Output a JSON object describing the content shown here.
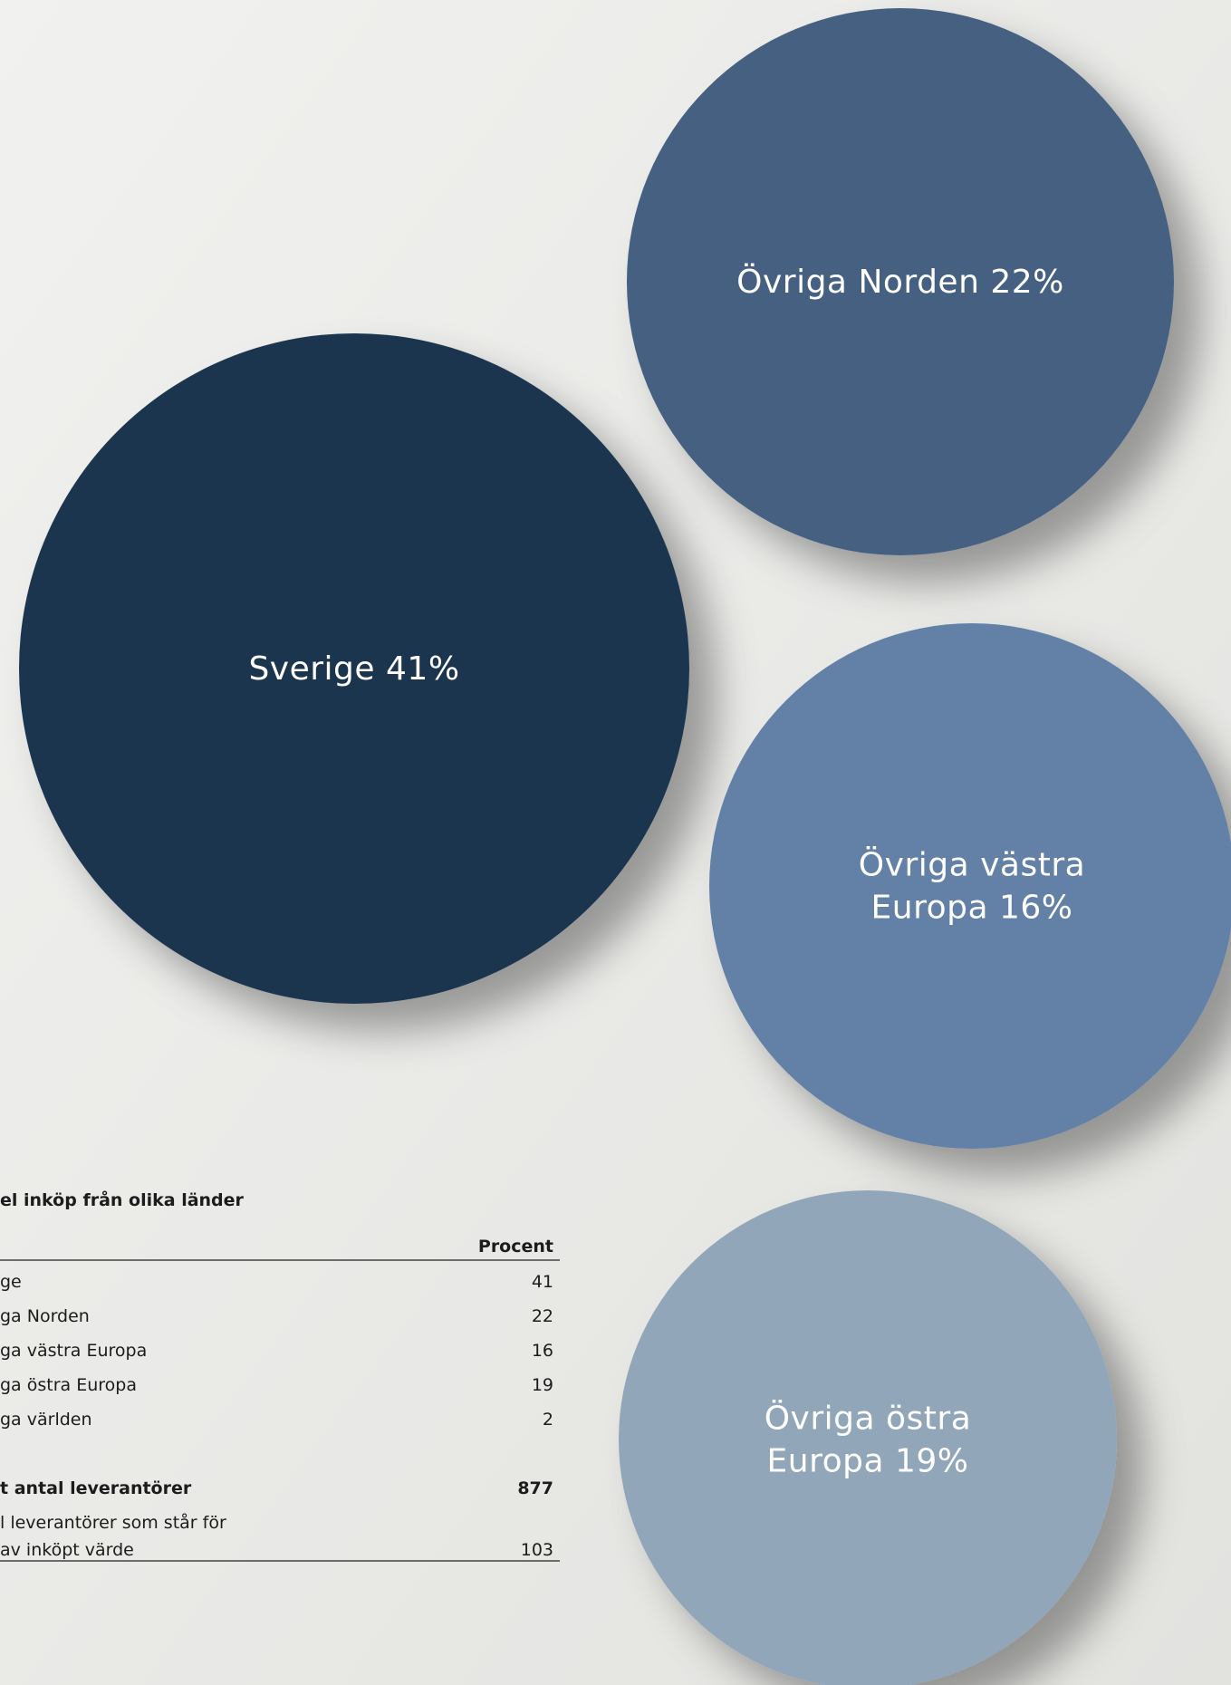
{
  "circles": [
    {
      "lines": [
        "Sverige 41%"
      ],
      "color": "#1d3650"
    },
    {
      "lines": [
        "Övriga Norden 22%"
      ],
      "color": "#456180"
    },
    {
      "lines": [
        "Övriga västra",
        "Europa 16%"
      ],
      "color": "#6381a6"
    },
    {
      "lines": [
        "Övriga östra",
        "Europa 19%"
      ],
      "color": "#91a6b9"
    }
  ],
  "table": {
    "title": "el inköp från olika länder",
    "header": "Procent",
    "rows": [
      [
        "ge",
        41
      ],
      [
        "ga Norden",
        22
      ],
      [
        "ga västra Europa",
        16
      ],
      [
        "ga östra Europa",
        19
      ],
      [
        "ga världen",
        2
      ]
    ],
    "total": [
      "t antal leverantörer",
      877
    ],
    "note": {
      "lines": [
        "l leverantörer som står för",
        "av inköpt värde"
      ],
      "value": 103
    }
  }
}
